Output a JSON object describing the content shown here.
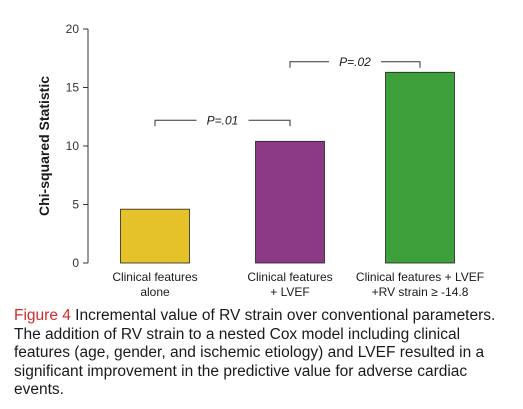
{
  "chart_data": {
    "type": "bar",
    "ylabel": "Chi-squared Statistic",
    "ylim": [
      0,
      20
    ],
    "yticks": [
      0,
      5,
      10,
      15,
      20
    ],
    "grid": false,
    "categories": [
      [
        "Clinical features",
        "alone"
      ],
      [
        "Clinical features",
        "+ LVEF"
      ],
      [
        "Clinical features + LVEF",
        "+RV strain ≥ -14.8"
      ]
    ],
    "values": [
      4.6,
      10.4,
      16.3
    ],
    "colors": [
      "#e6c22a",
      "#8c3a86",
      "#3ea03a"
    ],
    "annotations": [
      {
        "from": 0,
        "to": 1,
        "label": "P=.01",
        "level": 12.2
      },
      {
        "from": 1,
        "to": 2,
        "label": "P=.02",
        "level": 17.2
      }
    ]
  },
  "caption": {
    "label": "Figure 4",
    "text": " Incremental value of RV strain over conventional parameters. The addition of RV strain to a nested Cox model including clinical features (age, gender, and ischemic etiology) and LVEF resulted in a significant improvement in the predictive value for adverse cardiac events."
  }
}
